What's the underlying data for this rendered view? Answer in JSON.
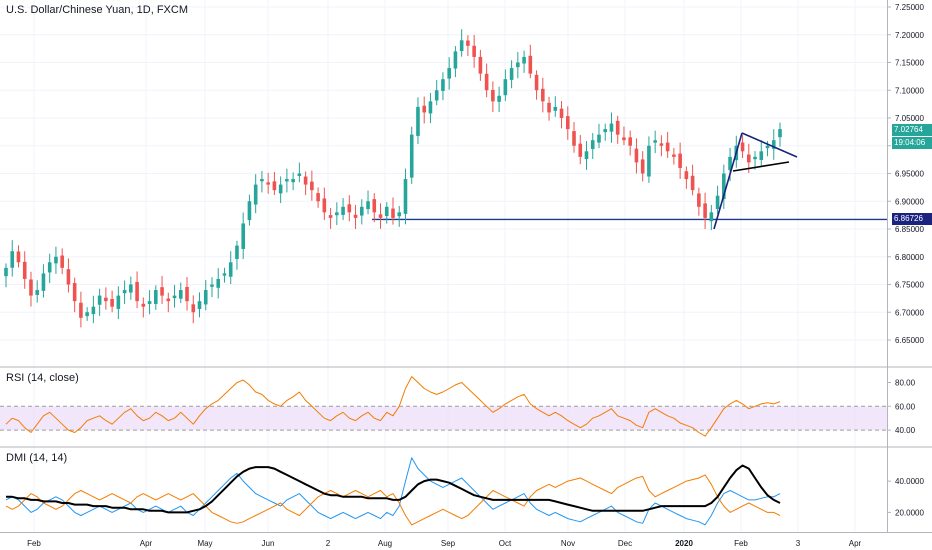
{
  "header": {
    "symbol_title": "U.S. Dollar/Chinese Yuan, 1D, FXCM",
    "rsi_label": "RSI (14, close)",
    "dmi_label": "DMI (14, 14)"
  },
  "price_labels": {
    "last_price": "7.02764",
    "countdown": "19:04:06",
    "support_price": "6.86726"
  },
  "colors": {
    "up": "#26a69a",
    "down": "#ef5350",
    "last_price_bg": "#26a69a",
    "support_line": "#1e3a8a",
    "trendline": "#1a237e",
    "rsi_line": "#f57c00",
    "rsi_band": "#e9d5f7",
    "dmi_plus": "#2196f3",
    "dmi_minus": "#f57c00",
    "adx": "#000000"
  },
  "chart_data": [
    {
      "type": "candlestick",
      "title": "U.S. Dollar/Chinese Yuan, 1D, FXCM",
      "x_ticks": [
        "Feb",
        "Apr",
        "May",
        "Jun",
        "2",
        "Aug",
        "Sep",
        "Oct",
        "Nov",
        "Dec",
        "2020",
        "Feb",
        "3",
        "Apr"
      ],
      "y_ticks": [
        6.65,
        6.7,
        6.75,
        6.8,
        6.85,
        6.9,
        6.95,
        7.0,
        7.05,
        7.1,
        7.15,
        7.2,
        7.25
      ],
      "ylim": [
        6.62,
        7.26
      ],
      "last_price": 7.02764,
      "support_level": 6.86726,
      "closes": [
        6.78,
        6.81,
        6.79,
        6.76,
        6.73,
        6.74,
        6.77,
        6.79,
        6.8,
        6.78,
        6.75,
        6.72,
        6.69,
        6.7,
        6.71,
        6.73,
        6.72,
        6.71,
        6.73,
        6.74,
        6.75,
        6.72,
        6.71,
        6.72,
        6.74,
        6.73,
        6.72,
        6.73,
        6.74,
        6.72,
        6.7,
        6.72,
        6.74,
        6.75,
        6.76,
        6.77,
        6.79,
        6.82,
        6.86,
        6.9,
        6.93,
        6.94,
        6.93,
        6.92,
        6.93,
        6.94,
        6.94,
        6.95,
        6.93,
        6.92,
        6.9,
        6.88,
        6.87,
        6.88,
        6.89,
        6.88,
        6.87,
        6.89,
        6.9,
        6.88,
        6.87,
        6.89,
        6.87,
        6.88,
        6.94,
        7.02,
        7.07,
        7.06,
        7.08,
        7.1,
        7.12,
        7.14,
        7.17,
        7.19,
        7.18,
        7.16,
        7.13,
        7.1,
        7.08,
        7.09,
        7.12,
        7.14,
        7.15,
        7.16,
        7.13,
        7.1,
        7.08,
        7.06,
        7.07,
        7.05,
        7.03,
        7.0,
        6.98,
        6.99,
        7.01,
        7.02,
        7.03,
        7.04,
        7.02,
        7.01,
        7.0,
        6.97,
        6.95,
        7.0,
        7.01,
        7.0,
        6.99,
        6.98,
        6.96,
        6.94,
        6.92,
        6.89,
        6.87,
        6.88,
        6.91,
        6.95,
        6.98,
        7.0,
        6.99,
        6.97,
        6.98,
        6.99,
        7.0,
        7.01,
        7.03
      ],
      "rsi": {
        "name": "RSI (14, close)",
        "ylim": [
          30,
          88
        ],
        "y_ticks": [
          40,
          60,
          80
        ],
        "band": [
          40,
          60
        ],
        "values": [
          45,
          50,
          48,
          42,
          38,
          45,
          52,
          55,
          50,
          45,
          40,
          38,
          42,
          48,
          50,
          52,
          48,
          45,
          50,
          55,
          58,
          52,
          48,
          50,
          55,
          52,
          48,
          50,
          55,
          50,
          45,
          52,
          58,
          62,
          65,
          70,
          75,
          80,
          82,
          78,
          72,
          70,
          65,
          62,
          60,
          65,
          68,
          72,
          65,
          60,
          55,
          50,
          48,
          52,
          55,
          50,
          48,
          52,
          55,
          50,
          48,
          55,
          52,
          60,
          75,
          85,
          80,
          75,
          72,
          70,
          72,
          75,
          78,
          80,
          75,
          70,
          65,
          60,
          55,
          58,
          62,
          65,
          68,
          70,
          62,
          58,
          55,
          52,
          55,
          52,
          48,
          45,
          42,
          45,
          50,
          52,
          55,
          58,
          52,
          50,
          48,
          44,
          42,
          55,
          58,
          55,
          52,
          50,
          46,
          44,
          42,
          38,
          35,
          42,
          50,
          58,
          62,
          65,
          62,
          58,
          60,
          62,
          63,
          62,
          64
        ]
      },
      "dmi": {
        "name": "DMI (14, 14)",
        "ylim": [
          10,
          58
        ],
        "y_ticks": [
          20,
          40
        ],
        "plus_di": [
          28,
          30,
          28,
          24,
          20,
          22,
          26,
          28,
          30,
          28,
          24,
          20,
          18,
          20,
          22,
          24,
          22,
          20,
          22,
          24,
          26,
          22,
          20,
          22,
          24,
          22,
          20,
          22,
          24,
          20,
          18,
          22,
          26,
          30,
          34,
          38,
          42,
          45,
          40,
          36,
          32,
          30,
          28,
          26,
          24,
          28,
          30,
          32,
          28,
          24,
          20,
          18,
          16,
          18,
          20,
          18,
          16,
          18,
          20,
          18,
          16,
          20,
          18,
          24,
          40,
          55,
          48,
          44,
          40,
          38,
          36,
          38,
          40,
          42,
          38,
          34,
          30,
          26,
          22,
          24,
          26,
          28,
          30,
          32,
          26,
          22,
          20,
          18,
          20,
          18,
          16,
          15,
          14,
          16,
          18,
          20,
          22,
          24,
          20,
          18,
          16,
          14,
          13,
          22,
          26,
          24,
          22,
          20,
          18,
          16,
          15,
          14,
          12,
          18,
          26,
          32,
          34,
          32,
          30,
          28,
          28,
          29,
          30,
          30,
          32
        ],
        "minus_di": [
          24,
          22,
          24,
          28,
          32,
          30,
          26,
          24,
          22,
          24,
          28,
          32,
          34,
          32,
          30,
          28,
          30,
          32,
          30,
          28,
          26,
          30,
          32,
          30,
          28,
          30,
          32,
          30,
          28,
          30,
          32,
          28,
          24,
          20,
          18,
          16,
          14,
          13,
          14,
          16,
          18,
          20,
          22,
          24,
          26,
          22,
          20,
          18,
          22,
          26,
          30,
          32,
          34,
          32,
          30,
          32,
          34,
          32,
          30,
          32,
          34,
          30,
          32,
          26,
          18,
          12,
          14,
          16,
          18,
          20,
          22,
          20,
          18,
          16,
          18,
          22,
          26,
          30,
          34,
          32,
          30,
          28,
          26,
          24,
          30,
          34,
          36,
          38,
          36,
          38,
          40,
          41,
          42,
          40,
          38,
          36,
          34,
          32,
          36,
          38,
          40,
          42,
          43,
          34,
          30,
          32,
          34,
          36,
          38,
          40,
          41,
          42,
          44,
          38,
          30,
          24,
          20,
          22,
          24,
          26,
          24,
          22,
          20,
          20,
          18
        ],
        "adx": [
          30,
          30,
          29,
          29,
          28,
          28,
          27,
          27,
          27,
          26,
          26,
          25,
          25,
          25,
          24,
          24,
          24,
          23,
          23,
          23,
          22,
          22,
          22,
          21,
          21,
          21,
          20,
          20,
          20,
          20,
          21,
          22,
          24,
          27,
          31,
          35,
          39,
          43,
          46,
          48,
          49,
          49,
          49,
          48,
          46,
          44,
          42,
          40,
          38,
          36,
          34,
          32,
          31,
          31,
          30,
          30,
          30,
          30,
          29,
          29,
          29,
          29,
          28,
          28,
          30,
          34,
          38,
          40,
          41,
          41,
          40,
          39,
          37,
          35,
          33,
          31,
          30,
          29,
          28,
          28,
          28,
          28,
          28,
          28,
          28,
          28,
          28,
          28,
          27,
          26,
          25,
          24,
          23,
          22,
          21,
          21,
          21,
          21,
          21,
          21,
          21,
          21,
          21,
          22,
          23,
          24,
          24,
          24,
          24,
          24,
          24,
          24,
          24,
          26,
          30,
          36,
          42,
          47,
          50,
          48,
          42,
          36,
          31,
          28,
          26
        ]
      }
    }
  ]
}
